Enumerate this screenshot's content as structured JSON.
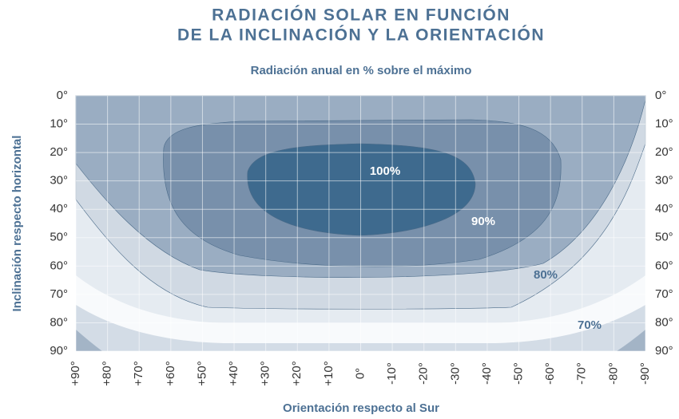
{
  "chart_data": {
    "type": "contour",
    "title": [
      "RADIACIÓN SOLAR EN FUNCIÓN",
      "DE LA INCLINACIÓN Y LA ORIENTACIÓN"
    ],
    "subtitle": "Radiación anual en % sobre el máximo",
    "xlabel": "Orientación respecto al Sur",
    "ylabel": "Inclinación respecto horizontal",
    "xlim": [
      90,
      -90
    ],
    "xticks": [
      {
        "value": 90,
        "label": "+90°"
      },
      {
        "value": 80,
        "label": "+80°"
      },
      {
        "value": 70,
        "label": "+70°"
      },
      {
        "value": 60,
        "label": "+60°"
      },
      {
        "value": 50,
        "label": "+50°"
      },
      {
        "value": 40,
        "label": "+40°"
      },
      {
        "value": 30,
        "label": "+30°"
      },
      {
        "value": 20,
        "label": "+20°"
      },
      {
        "value": 10,
        "label": "+10°"
      },
      {
        "value": 0,
        "label": "0°"
      },
      {
        "value": -10,
        "label": "-10°"
      },
      {
        "value": -20,
        "label": "-20°"
      },
      {
        "value": -30,
        "label": "-30°"
      },
      {
        "value": -40,
        "label": "-40°"
      },
      {
        "value": -50,
        "label": "-50°"
      },
      {
        "value": -60,
        "label": "-60°"
      },
      {
        "value": -70,
        "label": "-70°"
      },
      {
        "value": -80,
        "label": "-80°"
      },
      {
        "value": -90,
        "label": "-90°"
      }
    ],
    "ylim": [
      0,
      90
    ],
    "yticks": [
      {
        "value": 0,
        "label": "0°"
      },
      {
        "value": 10,
        "label": "10°"
      },
      {
        "value": 20,
        "label": "20°"
      },
      {
        "value": 30,
        "label": "30°"
      },
      {
        "value": 40,
        "label": "40°"
      },
      {
        "value": 50,
        "label": "50°"
      },
      {
        "value": 60,
        "label": "60°"
      },
      {
        "value": 70,
        "label": "70°"
      },
      {
        "value": 80,
        "label": "80°"
      },
      {
        "value": 90,
        "label": "90°"
      }
    ],
    "grid": true,
    "contours": [
      {
        "value": 100,
        "label": "100%",
        "color": "#3e6a8e"
      },
      {
        "value": 90,
        "label": "90%",
        "color": "#7890ab"
      },
      {
        "value": 80,
        "label": "80%",
        "color": "#9aadc2"
      },
      {
        "value": 70,
        "label": "70%",
        "color": "#d0d9e3"
      }
    ]
  }
}
